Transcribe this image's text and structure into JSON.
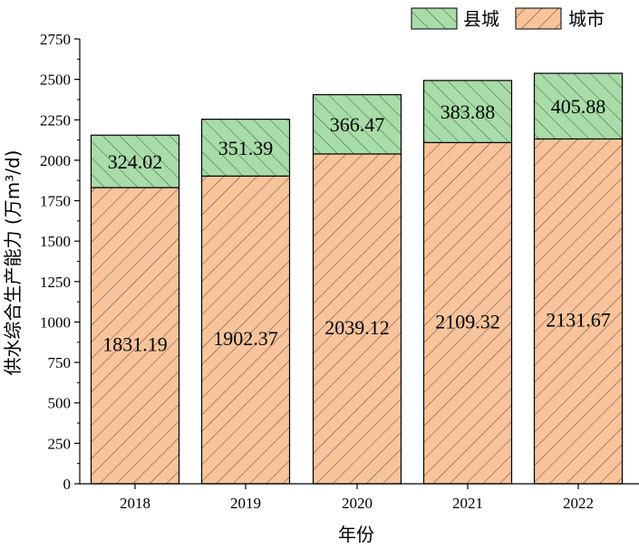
{
  "chart_data": {
    "type": "bar",
    "stacked": true,
    "categories": [
      "2018",
      "2019",
      "2020",
      "2021",
      "2022"
    ],
    "series": [
      {
        "name": "城市",
        "values": [
          1831.19,
          1902.37,
          2039.12,
          2109.32,
          2131.67
        ],
        "color": "#f9c49b",
        "hatch": "diagonal"
      },
      {
        "name": "县城",
        "values": [
          324.02,
          351.39,
          366.47,
          383.88,
          405.88
        ],
        "color": "#a8dca8",
        "hatch": "diagonal"
      }
    ],
    "data_labels": {
      "城市": [
        "1831.19",
        "1902.37",
        "2039.12",
        "2109.32",
        "2131.67"
      ],
      "县城": [
        "324.02",
        "351.39",
        "366.47",
        "383.88",
        "405.88"
      ]
    },
    "xlabel": "年份",
    "ylabel": "供水综合生产能力 (万m³/d)",
    "ylim": [
      0,
      2750
    ],
    "yticks": [
      "0",
      "250",
      "500",
      "750",
      "1000",
      "1250",
      "1500",
      "1750",
      "2000",
      "2250",
      "2500",
      "2750"
    ],
    "legend": {
      "position": "top-right",
      "entries": [
        "县城",
        "城市"
      ]
    },
    "grid": false
  }
}
